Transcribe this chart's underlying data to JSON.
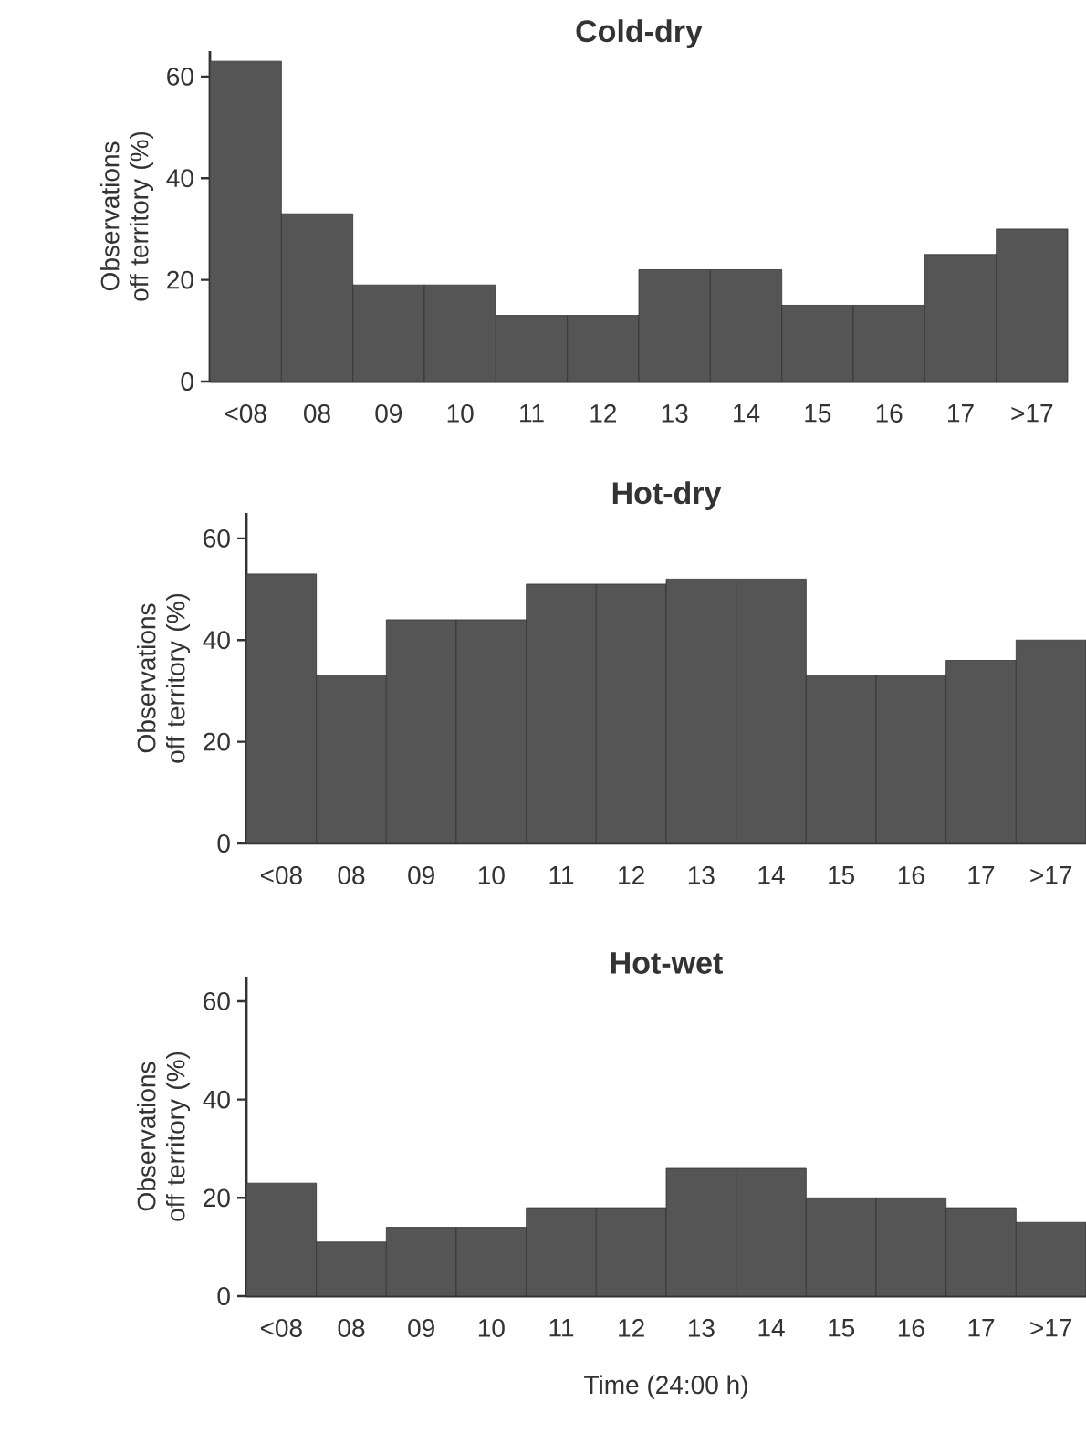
{
  "chart_data": [
    {
      "type": "bar",
      "title": "Cold-dry",
      "ylabel": "Observations off territory (%)",
      "categories": [
        "<08",
        "08",
        "09",
        "10",
        "11",
        "12",
        "13",
        "14",
        "15",
        "16",
        "17",
        ">17"
      ],
      "values": [
        63,
        33,
        19,
        19,
        13,
        13,
        22,
        22,
        15,
        15,
        25,
        30
      ],
      "color": "#555555",
      "ylim": [
        0,
        65
      ],
      "yticks": [
        0,
        20,
        40,
        60
      ]
    },
    {
      "type": "bar",
      "title": "Hot-dry",
      "ylabel": "Observations off territory (%)",
      "categories": [
        "<08",
        "08",
        "09",
        "10",
        "11",
        "12",
        "13",
        "14",
        "15",
        "16",
        "17",
        ">17"
      ],
      "values": [
        53,
        33,
        44,
        44,
        51,
        51,
        52,
        52,
        33,
        33,
        36,
        40
      ],
      "color": "#555555",
      "ylim": [
        0,
        65
      ],
      "yticks": [
        0,
        20,
        40,
        60
      ]
    },
    {
      "type": "bar",
      "title": "Hot-wet",
      "ylabel": "Observations off territory (%)",
      "xlabel": "Time (24:00 h)",
      "categories": [
        "<08",
        "08",
        "09",
        "10",
        "11",
        "12",
        "13",
        "14",
        "15",
        "16",
        "17",
        ">17"
      ],
      "values": [
        23,
        11,
        14,
        14,
        18,
        18,
        26,
        26,
        20,
        20,
        18,
        15
      ],
      "color": "#555555",
      "ylim": [
        0,
        65
      ],
      "yticks": [
        0,
        20,
        40,
        60
      ]
    }
  ]
}
